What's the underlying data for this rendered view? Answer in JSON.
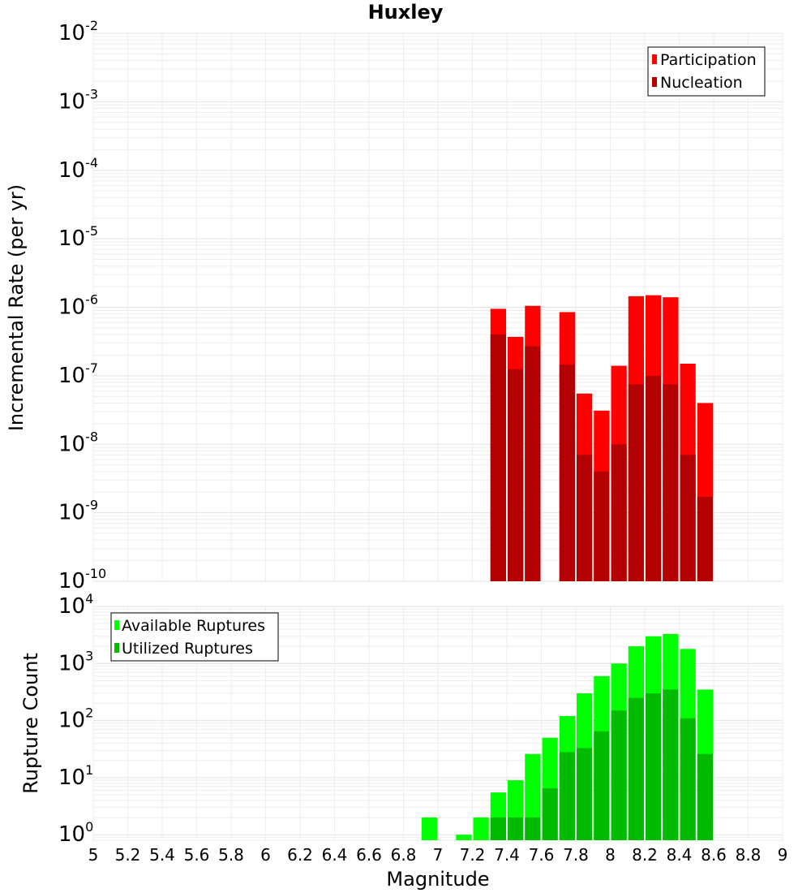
{
  "chart_data": [
    {
      "type": "bar",
      "title": "Huxley",
      "ylabel": "Incremental Rate (per yr)",
      "xlabel": "",
      "yscale": "log",
      "ylim": [
        1e-10,
        0.01
      ],
      "xlim": [
        5,
        9
      ],
      "grid": true,
      "legend_position": "top-right",
      "ytick_labels": [
        {
          "base": "10",
          "exp": "-10"
        },
        {
          "base": "10",
          "exp": "-9"
        },
        {
          "base": "10",
          "exp": "-8"
        },
        {
          "base": "10",
          "exp": "-7"
        },
        {
          "base": "10",
          "exp": "-6"
        },
        {
          "base": "10",
          "exp": "-5"
        },
        {
          "base": "10",
          "exp": "-4"
        },
        {
          "base": "10",
          "exp": "-3"
        },
        {
          "base": "10",
          "exp": "-2"
        }
      ],
      "x": [
        7.35,
        7.45,
        7.55,
        7.65,
        7.75,
        7.85,
        7.95,
        8.05,
        8.15,
        8.25,
        8.35,
        8.45,
        8.55
      ],
      "series": [
        {
          "name": "Participation",
          "color": "#ff0000",
          "values": [
            9.5e-07,
            3.7e-07,
            1.05e-06,
            null,
            8.5e-07,
            5.5e-08,
            3.1e-08,
            1.4e-07,
            1.45e-06,
            1.5e-06,
            1.4e-06,
            1.5e-07,
            4e-08
          ]
        },
        {
          "name": "Nucleation",
          "color": "#b30000",
          "values": [
            4e-07,
            1.25e-07,
            2.7e-07,
            null,
            1.45e-07,
            7e-09,
            4e-09,
            1e-08,
            7.5e-08,
            1e-07,
            7.5e-08,
            7e-09,
            1.7e-09
          ]
        }
      ]
    },
    {
      "type": "bar",
      "title": "",
      "ylabel": "Rupture Count",
      "xlabel": "Magnitude",
      "yscale": "log",
      "ylim": [
        0.8,
        10000
      ],
      "xlim": [
        5,
        9
      ],
      "grid": true,
      "legend_position": "top-left",
      "xtick_labels": [
        "5",
        "5.2",
        "5.4",
        "5.6",
        "5.8",
        "6",
        "6.2",
        "6.4",
        "6.6",
        "6.8",
        "7",
        "7.2",
        "7.4",
        "7.6",
        "7.8",
        "8",
        "8.2",
        "8.4",
        "8.6",
        "8.8",
        "9"
      ],
      "ytick_labels": [
        {
          "base": "10",
          "exp": "0"
        },
        {
          "base": "10",
          "exp": "1"
        },
        {
          "base": "10",
          "exp": "2"
        },
        {
          "base": "10",
          "exp": "3"
        },
        {
          "base": "10",
          "exp": "4"
        }
      ],
      "x": [
        6.95,
        7.05,
        7.15,
        7.25,
        7.35,
        7.45,
        7.55,
        7.65,
        7.75,
        7.85,
        7.95,
        8.05,
        8.15,
        8.25,
        8.35,
        8.45,
        8.55
      ],
      "series": [
        {
          "name": "Available Ruptures",
          "color": "#00ff00",
          "values": [
            2,
            null,
            1,
            2,
            5.5,
            9,
            26,
            50,
            120,
            300,
            600,
            1000,
            2000,
            3000,
            3300,
            1800,
            350
          ]
        },
        {
          "name": "Utilized Ruptures",
          "color": "#00bb00",
          "values": [
            null,
            null,
            null,
            null,
            2,
            2,
            2,
            6.5,
            28,
            33,
            65,
            150,
            250,
            300,
            350,
            110,
            26
          ]
        }
      ]
    }
  ]
}
